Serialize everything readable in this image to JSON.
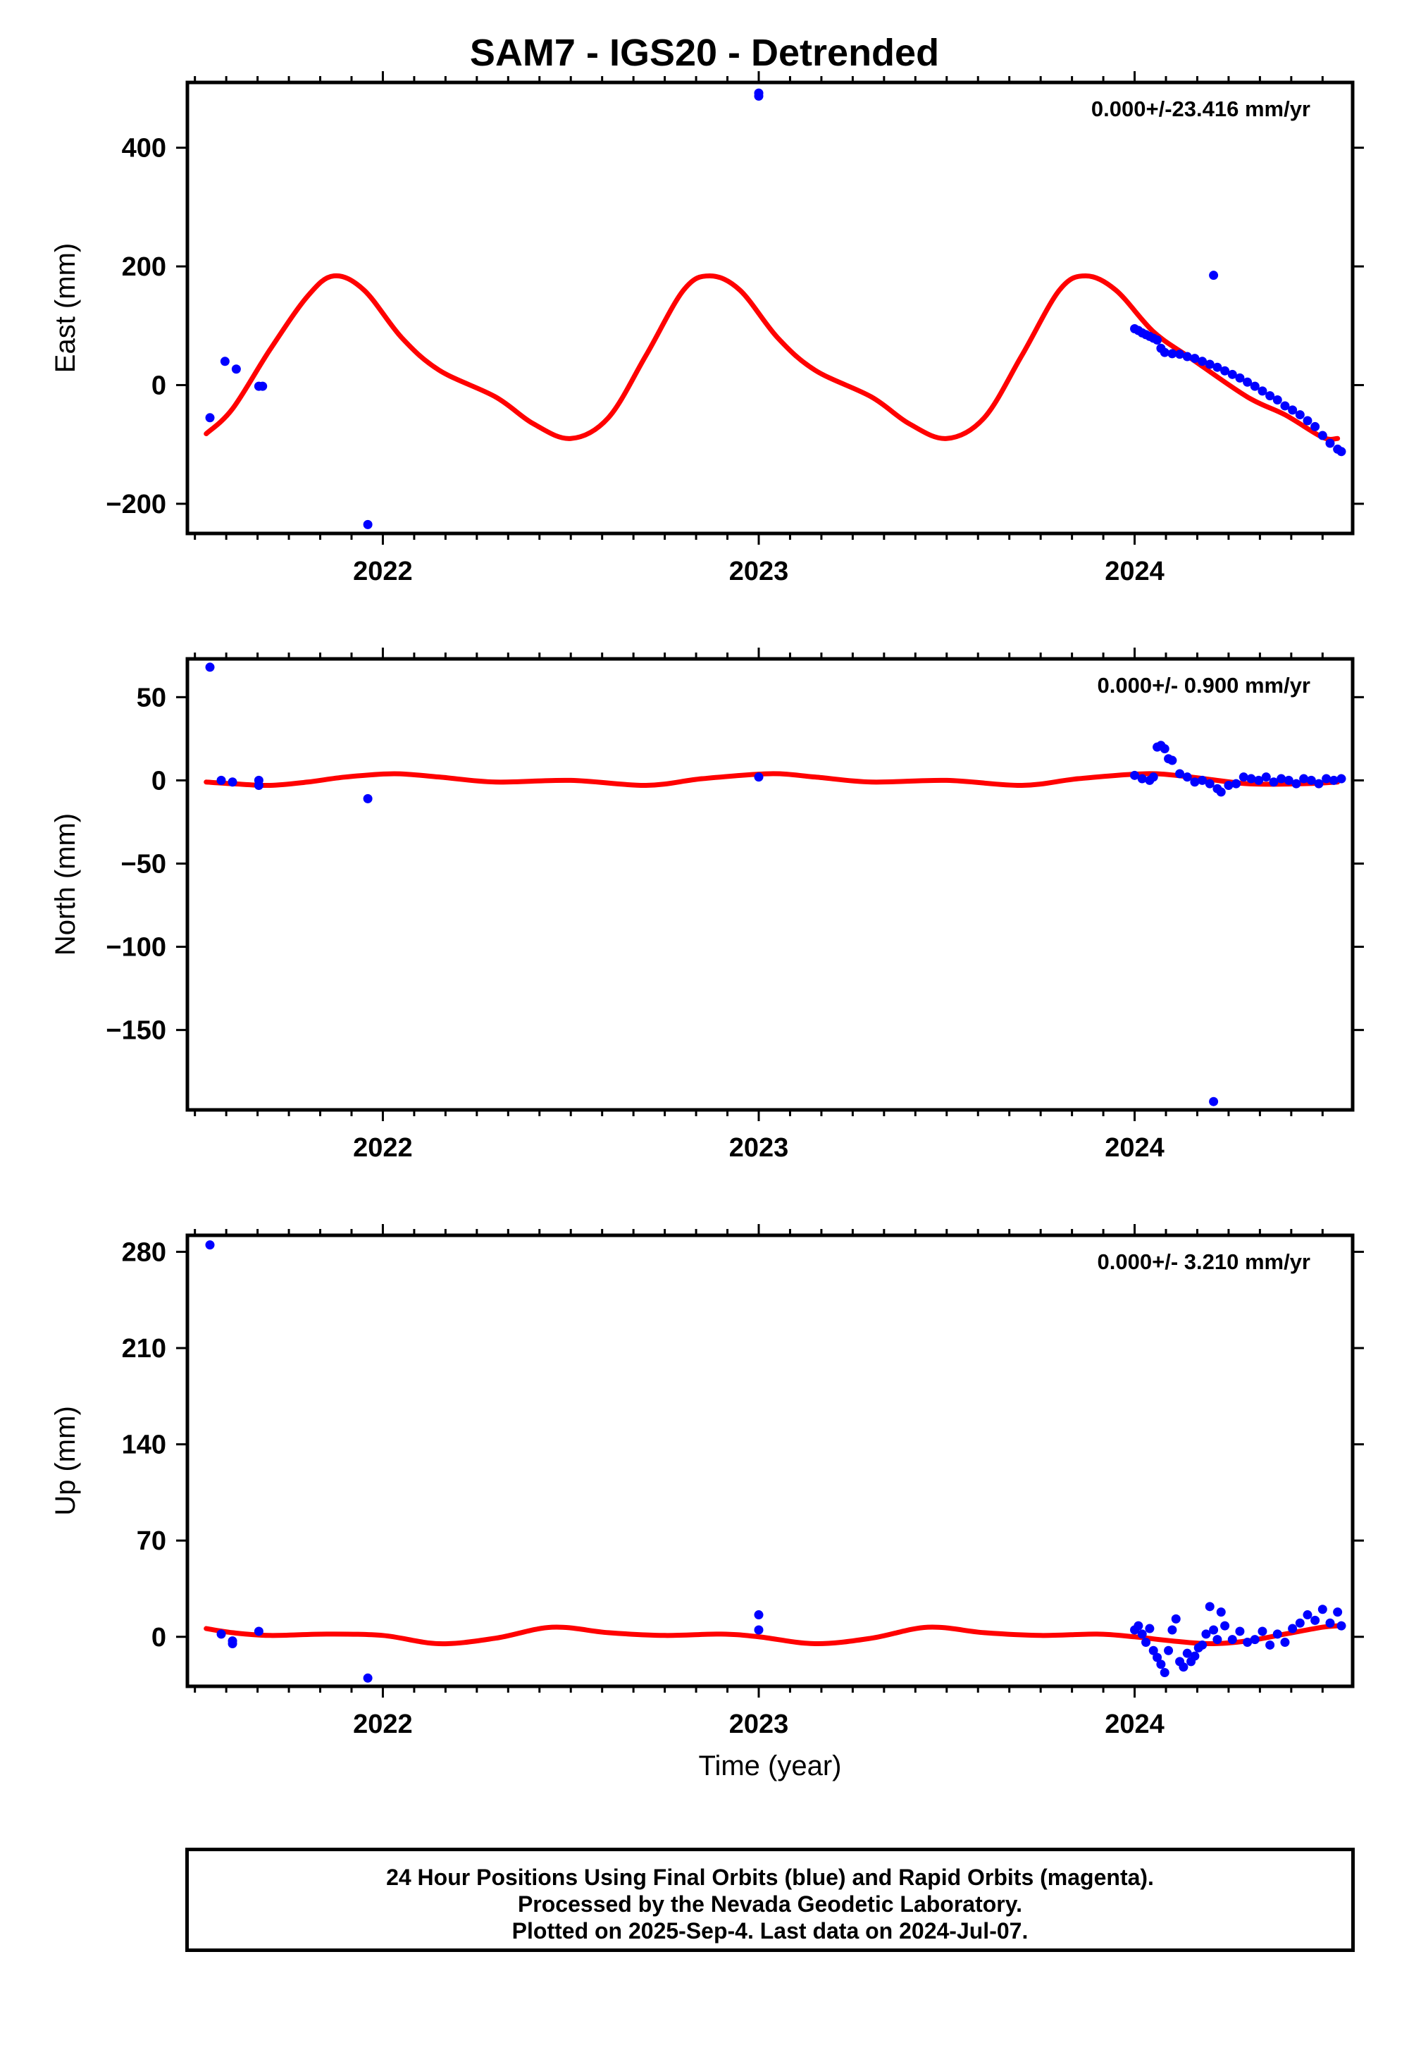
{
  "title": "SAM7 - IGS20 - Detrended",
  "footer": {
    "line1": "24 Hour Positions Using Final Orbits (blue) and Rapid Orbits (magenta).",
    "line2": "Processed by the Nevada Geodetic Laboratory.",
    "line3": "Plotted on 2025-Sep-4. Last data on 2024-Jul-07."
  },
  "colors": {
    "final_orbit_points": "#0000ff",
    "model_curve": "#ff0000",
    "frame": "#000000"
  },
  "chart_data": [
    {
      "type": "scatter",
      "title": "",
      "xlabel": "",
      "ylabel": "East (mm)",
      "rate_text": "0.000+/-23.416 mm/yr",
      "xlim": [
        2021.48,
        2024.58
      ],
      "ylim": [
        -250,
        510
      ],
      "yticks": [
        -200,
        0,
        200,
        400
      ],
      "ytick_labels": [
        "−200",
        "0",
        "200",
        "400"
      ],
      "xticks": [
        2022,
        2023,
        2024
      ],
      "xtick_labels": [
        "2022",
        "2023",
        "2024"
      ],
      "grid": false,
      "series": [
        {
          "name": "Final Orbits",
          "values": [
            [
              2021.54,
              -55
            ],
            [
              2021.58,
              40
            ],
            [
              2021.61,
              27
            ],
            [
              2021.67,
              -2
            ],
            [
              2021.68,
              -2
            ],
            [
              2021.96,
              -235
            ],
            [
              2023.0,
              492
            ],
            [
              2023.0,
              487
            ],
            [
              2024.21,
              185
            ],
            [
              2024.0,
              95
            ],
            [
              2024.01,
              92
            ],
            [
              2024.02,
              88
            ],
            [
              2024.03,
              85
            ],
            [
              2024.04,
              82
            ],
            [
              2024.05,
              79
            ],
            [
              2024.06,
              76
            ],
            [
              2024.07,
              62
            ],
            [
              2024.08,
              55
            ],
            [
              2024.1,
              53
            ],
            [
              2024.12,
              52
            ],
            [
              2024.14,
              48
            ],
            [
              2024.16,
              45
            ],
            [
              2024.18,
              40
            ],
            [
              2024.2,
              35
            ],
            [
              2024.22,
              30
            ],
            [
              2024.24,
              24
            ],
            [
              2024.26,
              18
            ],
            [
              2024.28,
              12
            ],
            [
              2024.3,
              5
            ],
            [
              2024.32,
              -2
            ],
            [
              2024.34,
              -10
            ],
            [
              2024.36,
              -18
            ],
            [
              2024.38,
              -25
            ],
            [
              2024.4,
              -35
            ],
            [
              2024.42,
              -42
            ],
            [
              2024.44,
              -50
            ],
            [
              2024.46,
              -60
            ],
            [
              2024.48,
              -70
            ],
            [
              2024.5,
              -85
            ],
            [
              2024.52,
              -98
            ],
            [
              2024.54,
              -108
            ],
            [
              2024.55,
              -112
            ]
          ]
        }
      ],
      "model": [
        [
          2021.53,
          -82
        ],
        [
          2021.6,
          -40
        ],
        [
          2021.7,
          60
        ],
        [
          2021.8,
          150
        ],
        [
          2021.87,
          184
        ],
        [
          2021.95,
          160
        ],
        [
          2022.05,
          80
        ],
        [
          2022.15,
          25
        ],
        [
          2022.3,
          -20
        ],
        [
          2022.4,
          -65
        ],
        [
          2022.5,
          -90
        ],
        [
          2022.6,
          -55
        ],
        [
          2022.7,
          50
        ],
        [
          2022.8,
          160
        ],
        [
          2022.87,
          184
        ],
        [
          2022.95,
          160
        ],
        [
          2023.05,
          80
        ],
        [
          2023.15,
          25
        ],
        [
          2023.3,
          -20
        ],
        [
          2023.4,
          -65
        ],
        [
          2023.5,
          -90
        ],
        [
          2023.6,
          -55
        ],
        [
          2023.7,
          50
        ],
        [
          2023.8,
          160
        ],
        [
          2023.87,
          184
        ],
        [
          2023.95,
          160
        ],
        [
          2024.05,
          90
        ],
        [
          2024.15,
          45
        ],
        [
          2024.3,
          -20
        ],
        [
          2024.4,
          -50
        ],
        [
          2024.5,
          -88
        ],
        [
          2024.54,
          -90
        ]
      ]
    },
    {
      "type": "scatter",
      "title": "",
      "xlabel": "",
      "ylabel": "North (mm)",
      "rate_text": "0.000+/- 0.900 mm/yr",
      "xlim": [
        2021.48,
        2024.58
      ],
      "ylim": [
        -198,
        73
      ],
      "yticks": [
        -150,
        -100,
        -50,
        0,
        50
      ],
      "ytick_labels": [
        "−150",
        "−100",
        "−50",
        "0",
        "50"
      ],
      "xticks": [
        2022,
        2023,
        2024
      ],
      "xtick_labels": [
        "2022",
        "2023",
        "2024"
      ],
      "grid": false,
      "series": [
        {
          "name": "Final Orbits",
          "values": [
            [
              2021.54,
              68
            ],
            [
              2021.57,
              0
            ],
            [
              2021.6,
              -1
            ],
            [
              2021.67,
              0
            ],
            [
              2021.67,
              -3
            ],
            [
              2021.96,
              -11
            ],
            [
              2023.0,
              2
            ],
            [
              2024.21,
              -193
            ],
            [
              2024.0,
              3
            ],
            [
              2024.02,
              1
            ],
            [
              2024.04,
              0
            ],
            [
              2024.05,
              2
            ],
            [
              2024.06,
              20
            ],
            [
              2024.07,
              21
            ],
            [
              2024.08,
              19
            ],
            [
              2024.09,
              13
            ],
            [
              2024.1,
              12
            ],
            [
              2024.12,
              4
            ],
            [
              2024.14,
              2
            ],
            [
              2024.16,
              -1
            ],
            [
              2024.18,
              0
            ],
            [
              2024.2,
              -2
            ],
            [
              2024.22,
              -5
            ],
            [
              2024.23,
              -7
            ],
            [
              2024.25,
              -3
            ],
            [
              2024.27,
              -2
            ],
            [
              2024.29,
              2
            ],
            [
              2024.31,
              1
            ],
            [
              2024.33,
              0
            ],
            [
              2024.35,
              2
            ],
            [
              2024.37,
              -1
            ],
            [
              2024.39,
              1
            ],
            [
              2024.41,
              0
            ],
            [
              2024.43,
              -2
            ],
            [
              2024.45,
              1
            ],
            [
              2024.47,
              0
            ],
            [
              2024.49,
              -2
            ],
            [
              2024.51,
              1
            ],
            [
              2024.53,
              0
            ],
            [
              2024.55,
              1
            ]
          ]
        }
      ],
      "model": [
        [
          2021.53,
          -1
        ],
        [
          2021.6,
          -2
        ],
        [
          2021.7,
          -3
        ],
        [
          2021.8,
          -1
        ],
        [
          2021.9,
          2
        ],
        [
          2022.03,
          4
        ],
        [
          2022.15,
          2
        ],
        [
          2022.3,
          -1
        ],
        [
          2022.5,
          0
        ],
        [
          2022.7,
          -3
        ],
        [
          2022.85,
          1
        ],
        [
          2023.03,
          4
        ],
        [
          2023.15,
          2
        ],
        [
          2023.3,
          -1
        ],
        [
          2023.5,
          0
        ],
        [
          2023.7,
          -3
        ],
        [
          2023.85,
          1
        ],
        [
          2024.03,
          4
        ],
        [
          2024.15,
          2
        ],
        [
          2024.3,
          -2
        ],
        [
          2024.45,
          -2
        ],
        [
          2024.54,
          -1
        ]
      ]
    },
    {
      "type": "scatter",
      "title": "",
      "xlabel": "Time (year)",
      "ylabel": "Up (mm)",
      "rate_text": "0.000+/- 3.210 mm/yr",
      "xlim": [
        2021.48,
        2024.58
      ],
      "ylim": [
        -36,
        292
      ],
      "yticks": [
        0,
        70,
        140,
        210,
        280
      ],
      "ytick_labels": [
        "0",
        "70",
        "140",
        "210",
        "280"
      ],
      "xticks": [
        2022,
        2023,
        2024
      ],
      "xtick_labels": [
        "2022",
        "2023",
        "2024"
      ],
      "grid": false,
      "series": [
        {
          "name": "Final Orbits",
          "values": [
            [
              2021.54,
              285
            ],
            [
              2021.57,
              2
            ],
            [
              2021.6,
              -3
            ],
            [
              2021.6,
              -5
            ],
            [
              2021.67,
              4
            ],
            [
              2021.96,
              -30
            ],
            [
              2023.0,
              16
            ],
            [
              2023.0,
              5
            ],
            [
              2024.0,
              5
            ],
            [
              2024.01,
              8
            ],
            [
              2024.02,
              2
            ],
            [
              2024.03,
              -4
            ],
            [
              2024.04,
              6
            ],
            [
              2024.05,
              -10
            ],
            [
              2024.06,
              -15
            ],
            [
              2024.07,
              -20
            ],
            [
              2024.08,
              -26
            ],
            [
              2024.09,
              -10
            ],
            [
              2024.1,
              5
            ],
            [
              2024.11,
              13
            ],
            [
              2024.12,
              -18
            ],
            [
              2024.13,
              -22
            ],
            [
              2024.14,
              -12
            ],
            [
              2024.15,
              -18
            ],
            [
              2024.16,
              -14
            ],
            [
              2024.17,
              -8
            ],
            [
              2024.18,
              -6
            ],
            [
              2024.19,
              2
            ],
            [
              2024.2,
              22
            ],
            [
              2024.21,
              5
            ],
            [
              2024.22,
              -2
            ],
            [
              2024.23,
              18
            ],
            [
              2024.24,
              8
            ],
            [
              2024.26,
              -2
            ],
            [
              2024.28,
              4
            ],
            [
              2024.3,
              -4
            ],
            [
              2024.32,
              -2
            ],
            [
              2024.34,
              4
            ],
            [
              2024.36,
              -6
            ],
            [
              2024.38,
              2
            ],
            [
              2024.4,
              -4
            ],
            [
              2024.42,
              6
            ],
            [
              2024.44,
              10
            ],
            [
              2024.46,
              16
            ],
            [
              2024.48,
              12
            ],
            [
              2024.5,
              20
            ],
            [
              2024.52,
              10
            ],
            [
              2024.54,
              18
            ],
            [
              2024.55,
              8
            ]
          ]
        }
      ],
      "model": [
        [
          2021.53,
          6
        ],
        [
          2021.6,
          3
        ],
        [
          2021.7,
          1
        ],
        [
          2021.85,
          2
        ],
        [
          2022.0,
          1
        ],
        [
          2022.15,
          -5
        ],
        [
          2022.3,
          -1
        ],
        [
          2022.45,
          7
        ],
        [
          2022.6,
          3
        ],
        [
          2022.75,
          1
        ],
        [
          2022.9,
          2
        ],
        [
          2023.0,
          0
        ],
        [
          2023.15,
          -5
        ],
        [
          2023.3,
          -1
        ],
        [
          2023.45,
          7
        ],
        [
          2023.6,
          3
        ],
        [
          2023.75,
          1
        ],
        [
          2023.9,
          2
        ],
        [
          2024.0,
          0
        ],
        [
          2024.1,
          -3
        ],
        [
          2024.2,
          -5
        ],
        [
          2024.3,
          -3
        ],
        [
          2024.4,
          2
        ],
        [
          2024.5,
          7
        ],
        [
          2024.54,
          8
        ]
      ]
    }
  ]
}
